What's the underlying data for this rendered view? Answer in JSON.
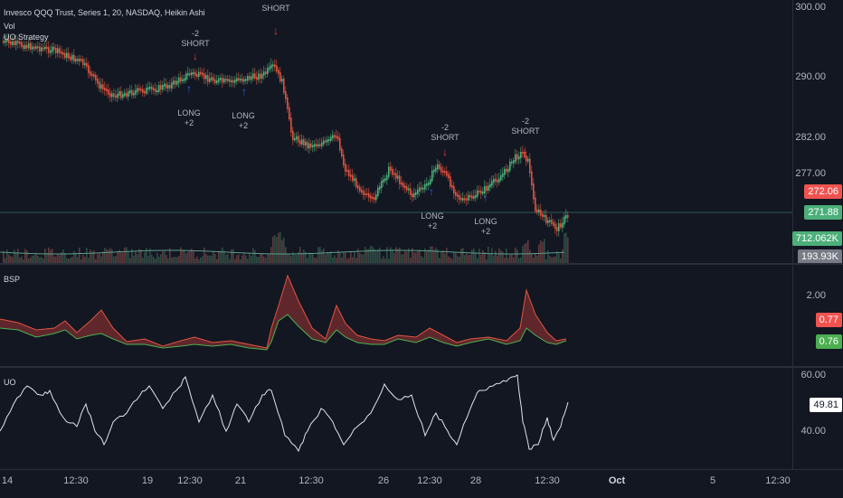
{
  "colors": {
    "bg": "#131722",
    "up": "#26a69a",
    "down": "#ef5350",
    "upc": "#4caf7a",
    "downc": "#e0533f",
    "short_arrow": "#f23645",
    "long_arrow": "#2962ff",
    "grid": "#2a2e39",
    "uo": "#e0e3eb"
  },
  "main": {
    "legend": {
      "title": "Invesco QQQ Trust, Series 1, 20, NASDAQ, Heikin Ashi",
      "vol": "Vol",
      "strategy": "UO Strategy"
    },
    "price_ticks": [
      "300.00",
      "290.00",
      "282.00",
      "277.00"
    ],
    "price_badge": "272.06",
    "current_badge": "271.88",
    "vol_badge": "712.062K",
    "vol_badge2": "193.93K",
    "signals": [
      {
        "kind": "short",
        "top": "-2",
        "bottom": "SHORT"
      },
      {
        "kind": "short",
        "top": "",
        "bottom": "SHORT"
      },
      {
        "kind": "long",
        "top": "LONG",
        "bottom": "+2"
      },
      {
        "kind": "long",
        "top": "LONG",
        "bottom": "+2"
      },
      {
        "kind": "short",
        "top": "-2",
        "bottom": "SHORT"
      },
      {
        "kind": "long",
        "top": "LONG",
        "bottom": "+2"
      },
      {
        "kind": "long",
        "top": "LONG",
        "bottom": "+2"
      },
      {
        "kind": "short",
        "top": "-2",
        "bottom": "SHORT"
      }
    ],
    "arrows": {
      "short": "↓",
      "long": "↑"
    }
  },
  "bsp": {
    "label": "BSP",
    "tick": "2.00",
    "badge_red": "0.77",
    "badge_green": "0.76"
  },
  "uo": {
    "label": "UO",
    "ticks": [
      "60.00",
      "40.00"
    ],
    "badge": "49.81"
  },
  "time_axis": [
    "14",
    "12:30",
    "19",
    "12:30",
    "21",
    "12:30",
    "26",
    "12:30",
    "28",
    "12:30",
    "Oct",
    "5",
    "12:30"
  ]
}
